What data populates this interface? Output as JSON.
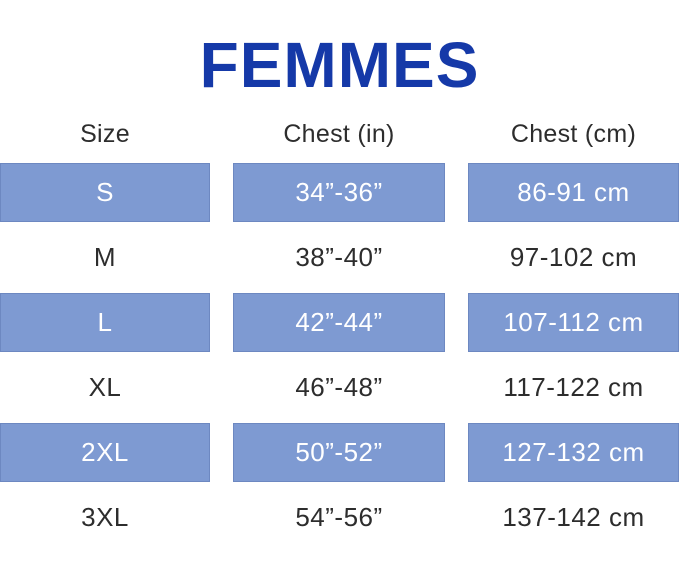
{
  "title": "FEMMES",
  "colors": {
    "title_blue": "#1539a8",
    "band_blue": "#7e9ad2",
    "band_border": "#6d88c1",
    "band_text": "#ffffff",
    "dark_text": "#2d2d2d",
    "background": "#ffffff"
  },
  "chart_data": {
    "type": "table",
    "title": "FEMMES",
    "columns": [
      "Size",
      "Chest (in)",
      "Chest (cm)"
    ],
    "rows": [
      [
        "S",
        "34”-36”",
        "86-91 cm"
      ],
      [
        "M",
        "38”-40”",
        "97-102 cm"
      ],
      [
        "L",
        "42”-44”",
        "107-112 cm"
      ],
      [
        "XL",
        "46”-48”",
        "117-122 cm"
      ],
      [
        "2XL",
        "50”-52”",
        "127-132 cm"
      ],
      [
        "3XL",
        "54”-56”",
        "137-142 cm"
      ]
    ],
    "highlighted_rows": [
      0,
      2,
      4
    ],
    "layout": {
      "grid": "off",
      "legend": "none",
      "header_position": "top"
    }
  }
}
